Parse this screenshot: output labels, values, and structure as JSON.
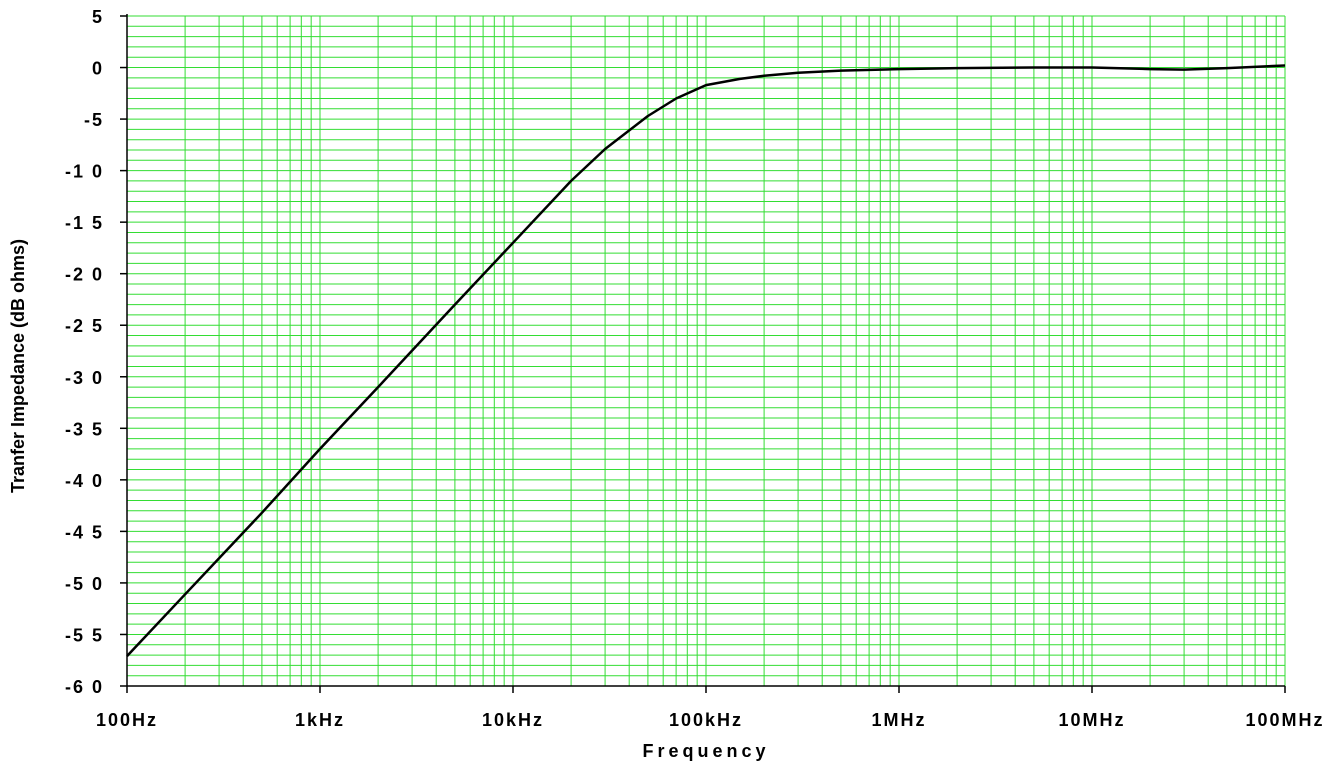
{
  "chart_data": {
    "type": "line",
    "title": "",
    "xlabel": "Frequency",
    "ylabel": "Tranfer Impedance (dB ohms)",
    "x_scale": "log",
    "xlim": [
      100,
      100000000
    ],
    "ylim": [
      -60,
      5
    ],
    "grid": true,
    "x_ticks": [
      {
        "value": 100,
        "label": "100Hz"
      },
      {
        "value": 1000,
        "label": "1kHz"
      },
      {
        "value": 10000,
        "label": "10kHz"
      },
      {
        "value": 100000,
        "label": "100kHz"
      },
      {
        "value": 1000000,
        "label": "1MHz"
      },
      {
        "value": 10000000,
        "label": "10MHz"
      },
      {
        "value": 100000000,
        "label": "100MHz"
      }
    ],
    "y_ticks": [
      {
        "value": 5,
        "label": "5"
      },
      {
        "value": 0,
        "label": "0"
      },
      {
        "value": -5,
        "label": "-5"
      },
      {
        "value": -10,
        "label": "-1 0"
      },
      {
        "value": -15,
        "label": "-1 5"
      },
      {
        "value": -20,
        "label": "-2 0"
      },
      {
        "value": -25,
        "label": "-2 5"
      },
      {
        "value": -30,
        "label": "-3 0"
      },
      {
        "value": -35,
        "label": "-3 5"
      },
      {
        "value": -40,
        "label": "-4 0"
      },
      {
        "value": -45,
        "label": "-4 5"
      },
      {
        "value": -50,
        "label": "-5 0"
      },
      {
        "value": -55,
        "label": "-5 5"
      },
      {
        "value": -60,
        "label": "-6 0"
      }
    ],
    "colors": {
      "grid": "#33dd33",
      "line": "#000000",
      "axis": "#000000"
    },
    "series": [
      {
        "x": [
          100,
          200,
          500,
          1000,
          2000,
          5000,
          10000,
          20000,
          30000,
          50000,
          70000,
          100000,
          150000,
          200000,
          300000,
          500000,
          1000000,
          2000000,
          5000000,
          10000000,
          20000000,
          30000000,
          50000000,
          100000000
        ],
        "values": [
          -57.1,
          -51.1,
          -43.2,
          -37.0,
          -31.0,
          -23.0,
          -17.0,
          -11.0,
          -7.9,
          -4.7,
          -3.0,
          -1.7,
          -1.1,
          -0.8,
          -0.5,
          -0.3,
          -0.15,
          -0.05,
          0,
          0,
          -0.15,
          -0.2,
          -0.05,
          0.2
        ]
      }
    ]
  }
}
